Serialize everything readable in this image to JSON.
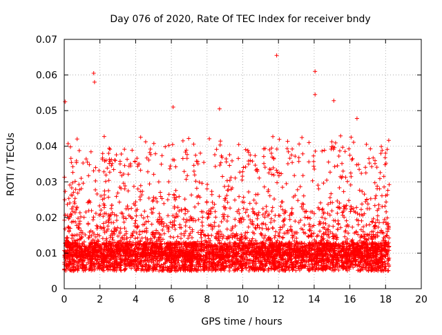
{
  "chart_data": {
    "type": "scatter",
    "title": "Day 076 of 2020, Rate Of TEC Index for receiver bndy",
    "xlabel": "GPS time / hours",
    "ylabel": "ROTI / TECUs",
    "xlim": [
      0,
      20
    ],
    "ylim": [
      0,
      0.07
    ],
    "x_ticks": [
      0,
      2,
      4,
      6,
      8,
      10,
      12,
      14,
      16,
      18,
      20
    ],
    "x_tick_labels": [
      "0",
      "2",
      "4",
      "6",
      "8",
      "10",
      "12",
      "14",
      "16",
      "18",
      "20"
    ],
    "y_ticks": [
      0,
      0.01,
      0.02,
      0.03,
      0.04,
      0.05,
      0.06,
      0.07
    ],
    "y_tick_labels": [
      "0",
      "0.01",
      "0.02",
      "0.03",
      "0.04",
      "0.05",
      "0.06",
      "0.07"
    ],
    "grid": true,
    "marker": "+",
    "marker_color": "#ff0000",
    "data_span_hours": [
      0,
      18.2
    ],
    "notable_points": [
      {
        "x": 0.05,
        "y": 0.0525
      },
      {
        "x": 1.65,
        "y": 0.0605
      },
      {
        "x": 1.7,
        "y": 0.058
      },
      {
        "x": 6.1,
        "y": 0.051
      },
      {
        "x": 8.7,
        "y": 0.0505
      },
      {
        "x": 11.9,
        "y": 0.0655
      },
      {
        "x": 14.05,
        "y": 0.061
      },
      {
        "x": 14.05,
        "y": 0.0545
      },
      {
        "x": 15.1,
        "y": 0.0528
      },
      {
        "x": 16.4,
        "y": 0.0478
      }
    ],
    "baseline_level": 0.009,
    "typical_upper_level": 0.035
  }
}
